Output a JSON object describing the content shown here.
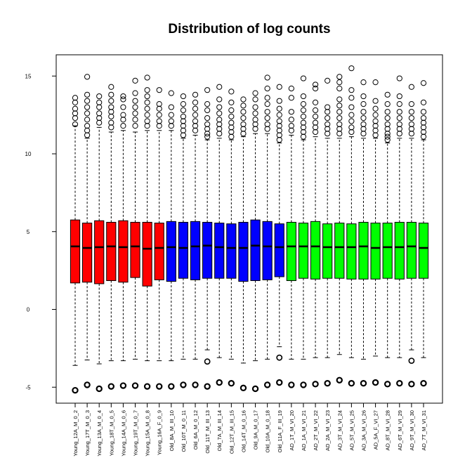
{
  "chart_data": {
    "type": "boxplot",
    "title": "Distribution of log counts",
    "xlabel": "",
    "ylabel": "",
    "ylim": [
      -6,
      16
    ],
    "yticks": [
      -5,
      0,
      5,
      10,
      15
    ],
    "grid": false,
    "legend": "none",
    "colors": {
      "young": "#ff0000",
      "old": "#0000ff",
      "ad": "#00ff00",
      "median": "#000000",
      "frame": "#000000"
    },
    "categories": [
      "Young_12A_M_0_2",
      "Young_17T_M_0_3",
      "Young_13A_M_0_4",
      "Young_18T_M_0_5",
      "Young_14A_M_0_6",
      "Young_19T_M_0_7",
      "Young_15A_M_0_8",
      "Young_16A_F_0_9",
      "Old_8A_M_III_10",
      "Old_10T_M_0_11",
      "Old_6A_M_0_12",
      "Old_11T_M_III_13",
      "Old_7A_M_III_14",
      "Old_12T_M_III_15",
      "Old_14T_M_0_16",
      "Old_9A_M_0_17",
      "Old_10A_M_0_18",
      "Old_11A_F_III_19",
      "AD_1T_M_VI_20",
      "AD_1A_M_VI_21",
      "AD_2T_M_VI_22",
      "AD_2A_M_VI_23",
      "AD_3T_M_VI_24",
      "AD_5T_M_VI_25",
      "AD_3A_M_VI_26",
      "AD_5A_F_VI_27",
      "AD_8T_M_VI_28",
      "AD_6T_M_VI_29",
      "AD_9T_M_VI_30",
      "AD_7T_M_VI_31"
    ],
    "groups": [
      "young",
      "young",
      "young",
      "young",
      "young",
      "young",
      "young",
      "young",
      "old",
      "old",
      "old",
      "old",
      "old",
      "old",
      "old",
      "old",
      "old",
      "old",
      "ad",
      "ad",
      "ad",
      "ad",
      "ad",
      "ad",
      "ad",
      "ad",
      "ad",
      "ad",
      "ad",
      "ad"
    ],
    "boxes": [
      {
        "q1": 1.7,
        "median": 4.05,
        "q3": 5.75,
        "lower_whisker": -3.6,
        "upper_whisker": 11.8,
        "outliers_high": [
          11.9,
          12.3,
          12.6,
          12.9,
          13.3,
          13.6
        ],
        "outliers_low": [
          -5.2
        ]
      },
      {
        "q1": 1.75,
        "median": 3.95,
        "q3": 5.55,
        "lower_whisker": -3.25,
        "upper_whisker": 11.0,
        "outliers_high": [
          11.2,
          11.5,
          11.8,
          12.2,
          12.6,
          13.0,
          13.4,
          13.8,
          14.95
        ],
        "outliers_low": [
          -4.85
        ]
      },
      {
        "q1": 1.65,
        "median": 4.0,
        "q3": 5.7,
        "lower_whisker": -3.5,
        "upper_whisker": 11.7,
        "outliers_high": [
          12.0,
          12.3,
          12.6,
          13.0,
          13.3,
          13.7
        ],
        "outliers_low": [
          -5.1
        ]
      },
      {
        "q1": 1.85,
        "median": 4.05,
        "q3": 5.6,
        "lower_whisker": -3.3,
        "upper_whisker": 11.4,
        "outliers_high": [
          11.7,
          12.0,
          12.4,
          12.7,
          13.0,
          13.4,
          13.8,
          14.3
        ],
        "outliers_low": [
          -4.95
        ]
      },
      {
        "q1": 1.75,
        "median": 4.0,
        "q3": 5.7,
        "lower_whisker": -3.3,
        "upper_whisker": 11.5,
        "outliers_high": [
          11.8,
          12.2,
          12.5,
          13.0,
          13.5,
          13.7
        ],
        "outliers_low": [
          -4.9
        ]
      },
      {
        "q1": 2.05,
        "median": 4.05,
        "q3": 5.6,
        "lower_whisker": -3.2,
        "upper_whisker": 11.4,
        "outliers_high": [
          11.8,
          12.2,
          12.6,
          13.0,
          13.4,
          13.9,
          14.7
        ],
        "outliers_low": [
          -4.9
        ]
      },
      {
        "q1": 1.5,
        "median": 3.9,
        "q3": 5.6,
        "lower_whisker": -3.3,
        "upper_whisker": 11.5,
        "outliers_high": [
          11.8,
          12.1,
          12.5,
          12.9,
          13.3,
          13.7,
          14.1,
          14.9
        ],
        "outliers_low": [
          -4.95
        ]
      },
      {
        "q1": 1.9,
        "median": 3.95,
        "q3": 5.55,
        "lower_whisker": -3.3,
        "upper_whisker": 11.5,
        "outliers_high": [
          11.8,
          12.1,
          12.5,
          12.9,
          13.2,
          14.1
        ],
        "outliers_low": [
          -4.95
        ]
      },
      {
        "q1": 1.8,
        "median": 4.0,
        "q3": 5.65,
        "lower_whisker": -3.3,
        "upper_whisker": 11.5,
        "outliers_high": [
          11.8,
          12.1,
          12.5,
          13.0,
          13.9
        ],
        "outliers_low": [
          -4.95
        ]
      },
      {
        "q1": 2.0,
        "median": 3.95,
        "q3": 5.6,
        "lower_whisker": -3.2,
        "upper_whisker": 11.0,
        "outliers_high": [
          11.2,
          11.5,
          11.8,
          12.1,
          12.4,
          12.8,
          13.2,
          13.7
        ],
        "outliers_low": [
          -4.85
        ]
      },
      {
        "q1": 1.9,
        "median": 4.05,
        "q3": 5.65,
        "lower_whisker": -3.2,
        "upper_whisker": 11.2,
        "outliers_high": [
          11.5,
          11.8,
          12.1,
          12.5,
          12.9,
          13.3,
          13.8
        ],
        "outliers_low": [
          -4.85
        ]
      },
      {
        "q1": 2.0,
        "median": 4.1,
        "q3": 5.6,
        "lower_whisker": -2.6,
        "upper_whisker": 10.9,
        "outliers_high": [
          11.1,
          11.3,
          11.6,
          11.9,
          12.3,
          12.8,
          13.2,
          14.1
        ],
        "outliers_low": [
          -3.35,
          -4.95
        ]
      },
      {
        "q1": 2.0,
        "median": 4.0,
        "q3": 5.55,
        "lower_whisker": -3.1,
        "upper_whisker": 11.0,
        "outliers_high": [
          11.3,
          11.6,
          11.9,
          12.2,
          12.6,
          13.0,
          13.5,
          14.3
        ],
        "outliers_low": [
          -4.7
        ]
      },
      {
        "q1": 2.0,
        "median": 3.95,
        "q3": 5.5,
        "lower_whisker": -3.2,
        "upper_whisker": 10.9,
        "outliers_high": [
          11.1,
          11.4,
          11.7,
          12.0,
          12.4,
          12.8,
          13.3,
          14.0
        ],
        "outliers_low": [
          -4.75
        ]
      },
      {
        "q1": 1.8,
        "median": 3.95,
        "q3": 5.6,
        "lower_whisker": -3.45,
        "upper_whisker": 11.1,
        "outliers_high": [
          11.3,
          11.6,
          11.9,
          12.3,
          12.7,
          13.1,
          13.5
        ],
        "outliers_low": [
          -5.05
        ]
      },
      {
        "q1": 1.85,
        "median": 4.1,
        "q3": 5.75,
        "lower_whisker": -3.3,
        "upper_whisker": 11.3,
        "outliers_high": [
          11.6,
          11.9,
          12.2,
          12.6,
          13.0,
          13.5,
          13.9
        ],
        "outliers_low": [
          -5.1
        ]
      },
      {
        "q1": 1.9,
        "median": 4.05,
        "q3": 5.65,
        "lower_whisker": -3.2,
        "upper_whisker": 11.3,
        "outliers_high": [
          11.6,
          11.9,
          12.3,
          12.7,
          13.2,
          13.6,
          14.2,
          14.9
        ],
        "outliers_low": [
          -4.85
        ]
      },
      {
        "q1": 2.1,
        "median": 4.0,
        "q3": 5.5,
        "lower_whisker": -2.4,
        "upper_whisker": 10.7,
        "outliers_high": [
          10.9,
          11.2,
          11.5,
          11.8,
          12.1,
          12.5,
          12.9,
          13.4,
          14.3
        ],
        "outliers_low": [
          -3.1,
          -4.7
        ]
      },
      {
        "q1": 1.85,
        "median": 4.05,
        "q3": 5.6,
        "lower_whisker": -3.2,
        "upper_whisker": 11.2,
        "outliers_high": [
          11.5,
          11.8,
          12.2,
          12.7,
          13.6,
          14.2
        ],
        "outliers_low": [
          -4.85
        ]
      },
      {
        "q1": 2.0,
        "median": 4.05,
        "q3": 5.55,
        "lower_whisker": -3.2,
        "upper_whisker": 10.9,
        "outliers_high": [
          11.1,
          11.4,
          11.7,
          12.0,
          12.4,
          12.8,
          13.2,
          13.7,
          14.85
        ],
        "outliers_low": [
          -4.85
        ]
      },
      {
        "q1": 1.95,
        "median": 4.05,
        "q3": 5.65,
        "lower_whisker": -3.1,
        "upper_whisker": 11.1,
        "outliers_high": [
          11.4,
          11.7,
          12.0,
          12.4,
          12.8,
          13.3,
          14.2,
          14.45
        ],
        "outliers_low": [
          -4.8
        ]
      },
      {
        "q1": 2.0,
        "median": 4.0,
        "q3": 5.5,
        "lower_whisker": -3.1,
        "upper_whisker": 11.0,
        "outliers_high": [
          11.3,
          11.6,
          11.9,
          12.3,
          12.7,
          13.0,
          14.7
        ],
        "outliers_low": [
          -4.75
        ]
      },
      {
        "q1": 2.0,
        "median": 4.0,
        "q3": 5.55,
        "lower_whisker": -2.9,
        "upper_whisker": 11.0,
        "outliers_high": [
          11.3,
          11.6,
          11.9,
          12.3,
          12.7,
          13.1,
          13.5,
          14.2,
          14.6,
          14.95
        ],
        "outliers_low": [
          -4.55
        ]
      },
      {
        "q1": 1.95,
        "median": 4.0,
        "q3": 5.5,
        "lower_whisker": -3.1,
        "upper_whisker": 11.1,
        "outliers_high": [
          11.4,
          11.7,
          12.1,
          12.5,
          13.0,
          13.6,
          14.1,
          15.5
        ],
        "outliers_low": [
          -4.75
        ]
      },
      {
        "q1": 1.95,
        "median": 4.05,
        "q3": 5.6,
        "lower_whisker": -3.2,
        "upper_whisker": 11.0,
        "outliers_high": [
          11.3,
          11.6,
          11.9,
          12.3,
          12.7,
          13.2,
          13.7,
          14.6
        ],
        "outliers_low": [
          -4.75
        ]
      },
      {
        "q1": 1.95,
        "median": 3.95,
        "q3": 5.55,
        "lower_whisker": -3.0,
        "upper_whisker": 11.0,
        "outliers_high": [
          11.2,
          11.5,
          11.8,
          12.1,
          12.5,
          12.9,
          13.4,
          14.6
        ],
        "outliers_low": [
          -4.7
        ]
      },
      {
        "q1": 2.0,
        "median": 4.0,
        "q3": 5.55,
        "lower_whisker": -3.1,
        "upper_whisker": 10.7,
        "outliers_high": [
          10.9,
          11.1,
          11.3,
          11.6,
          11.9,
          12.3,
          12.7,
          13.2,
          13.8
        ],
        "outliers_low": [
          -4.8
        ]
      },
      {
        "q1": 1.95,
        "median": 4.0,
        "q3": 5.6,
        "lower_whisker": -3.1,
        "upper_whisker": 11.0,
        "outliers_high": [
          11.3,
          11.6,
          11.9,
          12.3,
          12.7,
          13.2,
          13.7,
          14.85
        ],
        "outliers_low": [
          -4.75
        ]
      },
      {
        "q1": 2.0,
        "median": 4.05,
        "q3": 5.6,
        "lower_whisker": -2.6,
        "upper_whisker": 11.0,
        "outliers_high": [
          11.3,
          11.6,
          11.9,
          12.3,
          12.7,
          13.2,
          14.3
        ],
        "outliers_low": [
          -3.3,
          -4.8
        ]
      },
      {
        "q1": 2.0,
        "median": 3.95,
        "q3": 5.55,
        "lower_whisker": -3.1,
        "upper_whisker": 10.9,
        "outliers_high": [
          11.1,
          11.4,
          11.7,
          12.0,
          12.3,
          12.7,
          13.3,
          14.55
        ],
        "outliers_low": [
          -4.75
        ]
      }
    ]
  }
}
